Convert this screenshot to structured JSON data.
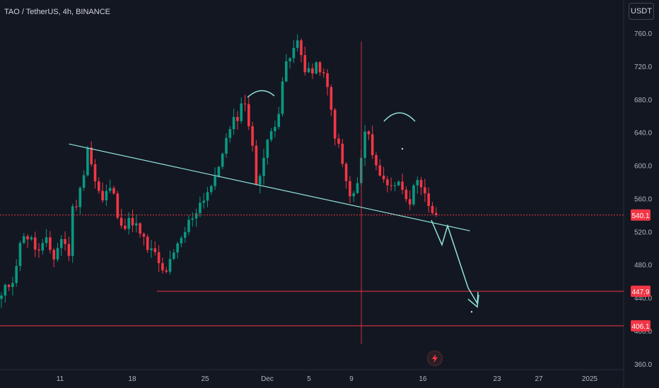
{
  "header": {
    "symbol": "TAO / TetherUS, 4h, BINANCE"
  },
  "toolbar": {
    "unit_label": "USDT",
    "bolt_icon": "lightning-icon"
  },
  "colors": {
    "background": "#131722",
    "up": "#089981",
    "down": "#f23645",
    "hline": "#f23645",
    "trendline": "#8fe3dc",
    "axis_text": "#b2b5be",
    "grid": "#1e222d"
  },
  "chart_data": {
    "type": "candlestick",
    "y_axis": {
      "ticks": [
        360,
        400,
        440,
        480,
        520,
        560,
        600,
        640,
        680,
        720,
        760
      ],
      "tick_labels": [
        "360.0",
        "400.0",
        "440.0",
        "480.0",
        "520.0",
        "560.0",
        "600.0",
        "640.0",
        "680.0",
        "720.0",
        "760.0"
      ],
      "ylim": [
        360,
        770
      ]
    },
    "x_axis": {
      "tick_labels": [
        "11",
        "18",
        "25",
        "Dec",
        "5",
        "9",
        "16",
        "23",
        "27",
        "2025"
      ]
    },
    "price_labels": [
      {
        "value": 540.1,
        "label": "540.1"
      },
      {
        "value": 447.9,
        "label": "447.9"
      },
      {
        "value": 406.1,
        "label": "406.1"
      }
    ],
    "price_path": [
      [
        0,
        440
      ],
      [
        3,
        465
      ],
      [
        6,
        520
      ],
      [
        10,
        495
      ],
      [
        12,
        505
      ],
      [
        14,
        490
      ],
      [
        16,
        512
      ],
      [
        18,
        495
      ],
      [
        19,
        545
      ],
      [
        21,
        568
      ],
      [
        23,
        625
      ],
      [
        25,
        580
      ],
      [
        27,
        555
      ],
      [
        29,
        575
      ],
      [
        31,
        545
      ],
      [
        33,
        525
      ],
      [
        35,
        535
      ],
      [
        37,
        515
      ],
      [
        39,
        500
      ],
      [
        41,
        490
      ],
      [
        43,
        470
      ],
      [
        45,
        480
      ],
      [
        47,
        500
      ],
      [
        49,
        520
      ],
      [
        51,
        540
      ],
      [
        53,
        555
      ],
      [
        55,
        570
      ],
      [
        57,
        580
      ],
      [
        59,
        620
      ],
      [
        61,
        640
      ],
      [
        63,
        662
      ],
      [
        65,
        680
      ],
      [
        66,
        650
      ],
      [
        67,
        618
      ],
      [
        68,
        580
      ],
      [
        70,
        610
      ],
      [
        72,
        640
      ],
      [
        74,
        670
      ],
      [
        75,
        705
      ],
      [
        77,
        730
      ],
      [
        79,
        748
      ],
      [
        81,
        720
      ],
      [
        83,
        712
      ],
      [
        85,
        720
      ],
      [
        87,
        690
      ],
      [
        89,
        640
      ],
      [
        91,
        600
      ],
      [
        93,
        560
      ],
      [
        95,
        575
      ],
      [
        97,
        640
      ],
      [
        99,
        620
      ],
      [
        101,
        585
      ],
      [
        103,
        580
      ],
      [
        105,
        578
      ],
      [
        107,
        575
      ],
      [
        109,
        560
      ],
      [
        111,
        575
      ],
      [
        113,
        560
      ],
      [
        115,
        545
      ],
      [
        116,
        540
      ]
    ],
    "hlines": [
      540.1,
      447.9,
      406.1
    ],
    "trendline": {
      "from": [
        18,
        626
      ],
      "to": [
        125,
        521
      ]
    }
  }
}
